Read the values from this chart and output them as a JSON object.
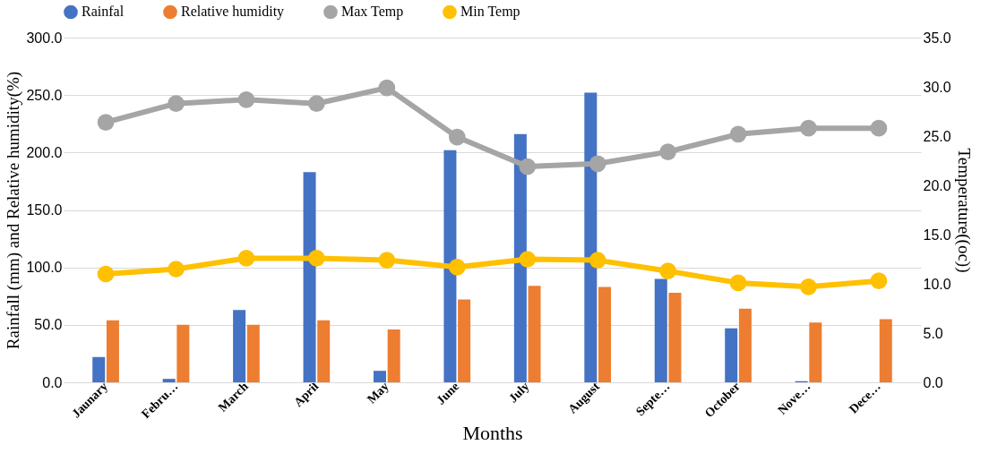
{
  "chart_data": {
    "type": "bar",
    "xlabel": "Months",
    "ylabel": "Rainfall (mm) and Relative humidity(%)",
    "y2label": "Temperature((oc))",
    "categories": [
      "Jaunary",
      "Febru…",
      "March",
      "April",
      "May",
      "June",
      "July",
      "August",
      "Septe…",
      "October",
      "Nove…",
      "Dece…"
    ],
    "series": [
      {
        "name": "Rainfal",
        "color": "#4472c4",
        "values": [
          22,
          3,
          63,
          183,
          10,
          202,
          216,
          252,
          90,
          47,
          1,
          0
        ]
      },
      {
        "name": "Relative humidity",
        "color": "#ed7d31",
        "values": [
          54,
          50,
          50,
          54,
          46,
          72,
          84,
          83,
          78,
          64,
          52,
          55
        ]
      },
      {
        "name": "Max Temp",
        "type": "line",
        "axis": "y2",
        "marker": "circle",
        "color": "#a5a5a5",
        "values": [
          26.4,
          28.3,
          28.7,
          28.3,
          29.9,
          24.9,
          21.9,
          22.2,
          23.4,
          25.2,
          25.8,
          25.8
        ]
      },
      {
        "name": "Min Temp",
        "type": "line",
        "axis": "y2",
        "marker": "circle",
        "color": "#ffc000",
        "values": [
          11.0,
          11.5,
          12.6,
          12.6,
          12.4,
          11.7,
          12.5,
          12.4,
          11.3,
          10.1,
          9.7,
          10.3
        ]
      }
    ],
    "ylim": [
      0,
      300
    ],
    "yticks": [
      {
        "value": 0,
        "label": "0.0"
      },
      {
        "value": 50,
        "label": "50.0"
      },
      {
        "value": 100,
        "label": "100.0"
      },
      {
        "value": 150,
        "label": "150.0"
      },
      {
        "value": 200,
        "label": "200.0"
      },
      {
        "value": 250,
        "label": "250.0"
      },
      {
        "value": 300,
        "label": "300.0"
      }
    ],
    "y2lim": [
      0,
      35
    ],
    "y2ticks": [
      {
        "value": 0,
        "label": "0.0"
      },
      {
        "value": 5,
        "label": "5.0"
      },
      {
        "value": 10,
        "label": "10.0"
      },
      {
        "value": 15,
        "label": "15.0"
      },
      {
        "value": 20,
        "label": "20.0"
      },
      {
        "value": 25,
        "label": "25.0"
      },
      {
        "value": 30,
        "label": "30.0"
      },
      {
        "value": 35,
        "label": "35.0"
      }
    ],
    "grid": "y",
    "legend": "top"
  }
}
